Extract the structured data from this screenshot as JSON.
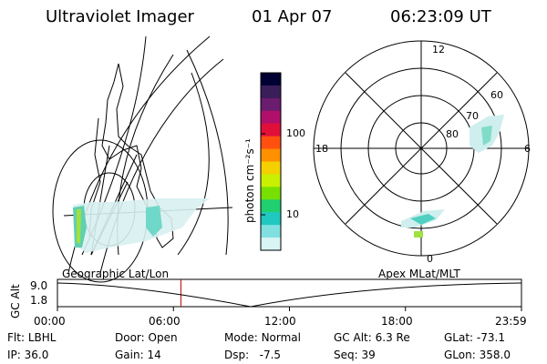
{
  "header": {
    "instrument": "Ultraviolet Imager",
    "date": "01 Apr 07",
    "time": "06:23:09 UT"
  },
  "colorbar": {
    "unit_label": "photon cm⁻²s⁻¹",
    "ticks": [
      "100",
      "10"
    ],
    "colors": [
      "#000033",
      "#3a1e5a",
      "#6a1c6e",
      "#b0106a",
      "#e0103a",
      "#ff5010",
      "#ff9000",
      "#f4d000",
      "#c8f000",
      "#78e000",
      "#20d070",
      "#20c8c0",
      "#80e0e0",
      "#d8f4f4"
    ]
  },
  "polar_plot": {
    "mlt_labels": [
      "12",
      "18",
      "6",
      "0"
    ],
    "lat_labels": [
      "60",
      "70",
      "80"
    ]
  },
  "orbit_plot": {
    "left_label": "Geographic Lat/Lon",
    "right_label": "Apex MLat/MLT",
    "y_axis_label": "GC Alt",
    "y_ticks": [
      "9.0",
      "1.8"
    ],
    "x_ticks": [
      "00:00",
      "06:00",
      "12:00",
      "18:00",
      "23:59"
    ],
    "current_time_marker_hours": 6.386
  },
  "status": {
    "row1": [
      {
        "label": "Flt:",
        "value": "LBHL"
      },
      {
        "label": "Door:",
        "value": "Open"
      },
      {
        "label": "Mode:",
        "value": "Normal"
      },
      {
        "label": "GC Alt:",
        "value": "6.3 Re"
      },
      {
        "label": "GLat:",
        "value": "-73.1"
      }
    ],
    "row2": [
      {
        "label": "IP:",
        "value": "36.0"
      },
      {
        "label": "Gain:",
        "value": "14"
      },
      {
        "label": "Dsp:",
        "value": "-7.5"
      },
      {
        "label": "Seq:",
        "value": "39"
      },
      {
        "label": "GLon:",
        "value": "358.0"
      }
    ]
  }
}
